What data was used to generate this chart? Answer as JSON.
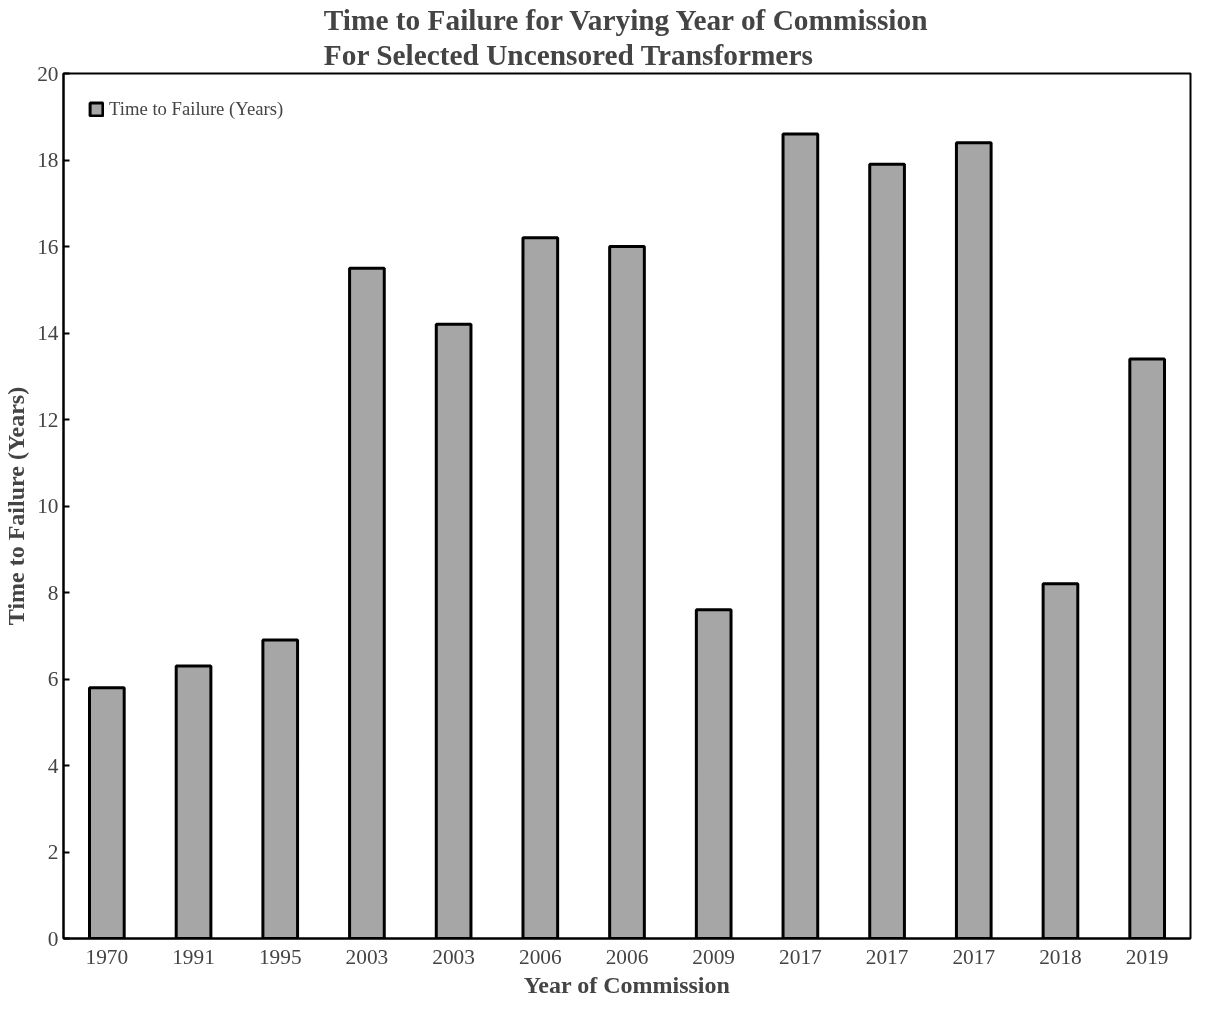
{
  "chart_data": {
    "type": "bar",
    "title": "Time to Failure for Varying Year of Commission For Selected Uncensored Transformers",
    "xlabel": "Year of Commission",
    "ylabel": "Time to Failure (Years)",
    "categories": [
      "1970",
      "1991",
      "1995",
      "2003",
      "2003",
      "2006",
      "2006",
      "2009",
      "2017",
      "2017",
      "2017",
      "2018",
      "2019"
    ],
    "series": [
      {
        "name": "Time to Failure (Years)",
        "color": "#a6a6a6",
        "values": [
          5.8,
          6.3,
          6.9,
          15.5,
          14.2,
          16.2,
          16.0,
          7.6,
          18.6,
          17.9,
          18.4,
          8.2,
          13.4
        ]
      }
    ],
    "ylim": [
      0,
      20
    ],
    "yticks": [
      0,
      2,
      4,
      6,
      8,
      10,
      12,
      14,
      16,
      18,
      20
    ],
    "grid": false,
    "legend": "top left"
  }
}
